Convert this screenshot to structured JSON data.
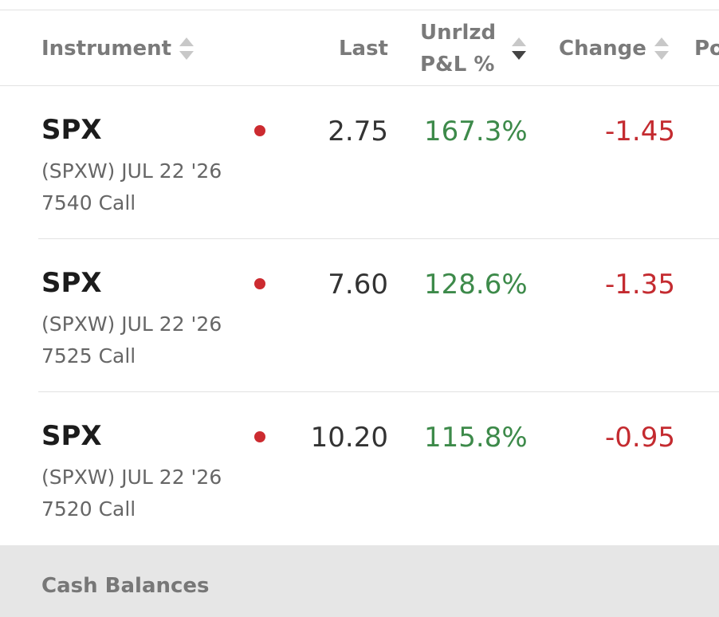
{
  "header": {
    "columns": [
      {
        "lines": [
          "Instrument"
        ],
        "sort": "none"
      },
      {
        "lines": [
          "Last"
        ],
        "sort": "hidden"
      },
      {
        "lines": [
          "Unrlzd",
          "P&L %"
        ],
        "sort": "desc"
      },
      {
        "lines": [
          "Change"
        ],
        "sort": "none"
      },
      {
        "lines": [
          "Po"
        ],
        "sort": "hidden"
      }
    ]
  },
  "rows": [
    {
      "symbol": "SPX",
      "description": [
        "(SPXW) JUL 22 '26",
        "7540 Call"
      ],
      "last": "2.75",
      "pnl": "167.3%",
      "change": "-1.45"
    },
    {
      "symbol": "SPX",
      "description": [
        "(SPXW) JUL 22 '26",
        "7525 Call"
      ],
      "last": "7.60",
      "pnl": "128.6%",
      "change": "-1.35"
    },
    {
      "symbol": "SPX",
      "description": [
        "(SPXW) JUL 22 '26",
        "7520 Call"
      ],
      "last": "10.20",
      "pnl": "115.8%",
      "change": "-0.95"
    }
  ],
  "footer": {
    "section": "Cash Balances"
  }
}
